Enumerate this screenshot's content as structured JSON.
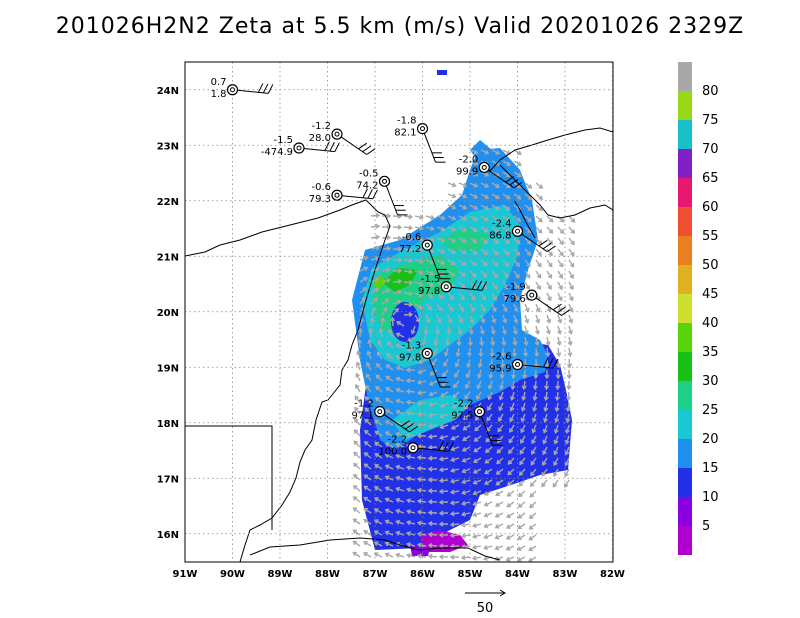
{
  "title": "201026H2N2 Zeta at 5.5 km (m/s) Valid 20201026 2329Z",
  "lon_ticks": [
    "91W",
    "90W",
    "89W",
    "88W",
    "87W",
    "86W",
    "85W",
    "84W",
    "83W",
    "82W"
  ],
  "lat_ticks": [
    "24N",
    "23N",
    "22N",
    "21N",
    "20N",
    "19N",
    "18N",
    "17N",
    "16N"
  ],
  "colorbar": {
    "levels": [
      "5",
      "10",
      "15",
      "20",
      "25",
      "30",
      "35",
      "40",
      "45",
      "50",
      "55",
      "60",
      "65",
      "70",
      "75",
      "80"
    ],
    "colors": [
      "#b000d0",
      "#8a00e0",
      "#2230e8",
      "#1f8ff0",
      "#19c8d2",
      "#1ecf88",
      "#18c018",
      "#5ad40a",
      "#cde030",
      "#e0b020",
      "#e88020",
      "#f05030",
      "#e81870",
      "#8020c8",
      "#19c0c8",
      "#98d818",
      "#a8a8a8"
    ]
  },
  "stations": [
    {
      "top": "0.7",
      "bottom": "1.8",
      "lon": -90.0,
      "lat": 24.0
    },
    {
      "top": "-1.2",
      "bottom": "28.0",
      "lon": -87.8,
      "lat": 23.2
    },
    {
      "top": "-1.8",
      "bottom": "82.1",
      "lon": -86.0,
      "lat": 23.3
    },
    {
      "top": "-1.5",
      "bottom": "-474.9",
      "lon": -88.6,
      "lat": 22.95
    },
    {
      "top": "-2.0",
      "bottom": "99.9",
      "lon": -84.7,
      "lat": 22.6
    },
    {
      "top": "-0.5",
      "bottom": "74.2",
      "lon": -86.8,
      "lat": 22.35
    },
    {
      "top": "-0.6",
      "bottom": "79.3",
      "lon": -87.8,
      "lat": 22.1
    },
    {
      "top": "-2.4",
      "bottom": "86.8",
      "lon": -84.0,
      "lat": 21.45
    },
    {
      "top": "-0.6",
      "bottom": "77.2",
      "lon": -85.9,
      "lat": 21.2
    },
    {
      "top": "-1.5",
      "bottom": "97.8",
      "lon": -85.5,
      "lat": 20.45
    },
    {
      "top": "-1.9",
      "bottom": "79.6",
      "lon": -83.7,
      "lat": 20.3
    },
    {
      "top": "-1.3",
      "bottom": "97.8",
      "lon": -85.9,
      "lat": 19.25
    },
    {
      "top": "-2.6",
      "bottom": "95.9",
      "lon": -84.0,
      "lat": 19.05
    },
    {
      "top": "-1.2",
      "bottom": "97.1",
      "lon": -86.9,
      "lat": 18.2
    },
    {
      "top": "-2.2",
      "bottom": "97.5",
      "lon": -84.8,
      "lat": 18.2
    },
    {
      "top": "-2.2",
      "bottom": "100.0",
      "lon": -86.2,
      "lat": 17.55
    }
  ],
  "reference_vector_label": "50"
}
